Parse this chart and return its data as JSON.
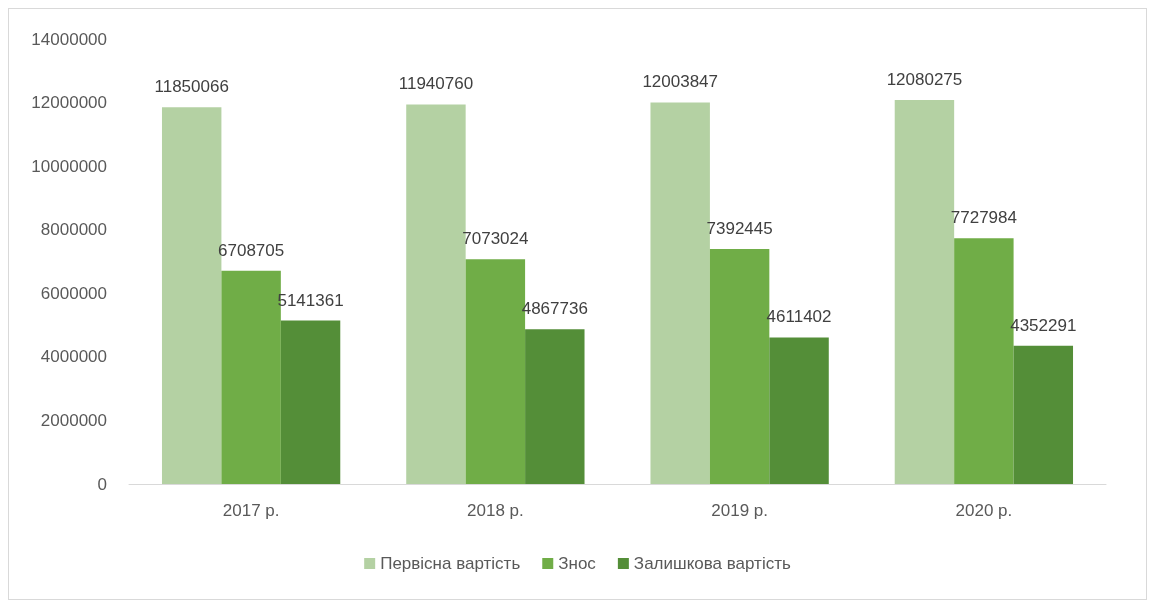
{
  "chart_data": {
    "type": "bar",
    "categories": [
      "2017 р.",
      "2018 р.",
      "2019 р.",
      "2020 р."
    ],
    "series": [
      {
        "name": "Первісна вартість",
        "color": "#b4d1a3",
        "values": [
          11850066,
          11940760,
          12003847,
          12080275
        ]
      },
      {
        "name": "Знос",
        "color": "#70ad47",
        "values": [
          6708705,
          7073024,
          7392445,
          7727984
        ]
      },
      {
        "name": "Залишкова вартість",
        "color": "#548e38",
        "values": [
          5141361,
          4867736,
          4611402,
          4352291
        ]
      }
    ],
    "ylim": [
      0,
      14000000
    ],
    "yticks": [
      0,
      2000000,
      4000000,
      6000000,
      8000000,
      10000000,
      12000000,
      14000000
    ],
    "grid": false,
    "legend": "bottom",
    "data_labels": true
  }
}
